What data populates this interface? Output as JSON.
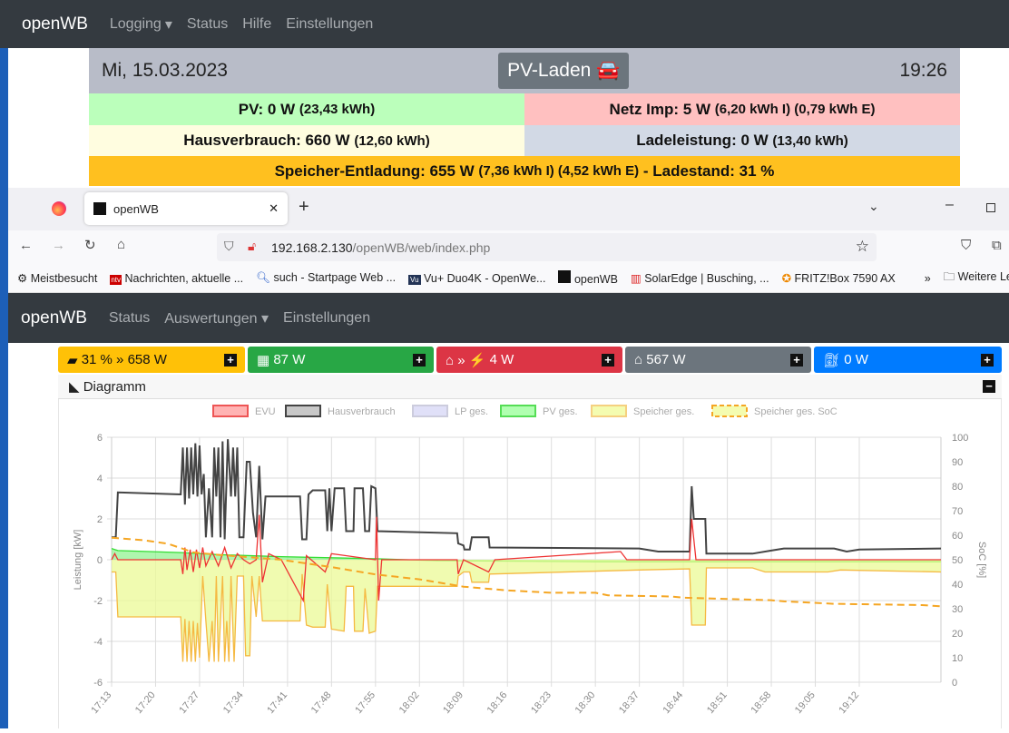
{
  "back_app": {
    "brand": "openWB",
    "nav": [
      "Logging",
      "Status",
      "Hilfe",
      "Einstellungen"
    ],
    "date": "Mi, 15.03.2023",
    "mode_button": "PV-Laden",
    "time": "19:26",
    "pv": {
      "main": "PV: 0 W",
      "sub": "(23,43 kWh)"
    },
    "netz": {
      "main": "Netz Imp: 5 W",
      "sub": "(6,20 kWh I) (0,79 kWh E)"
    },
    "haus": {
      "main": "Hausverbrauch: 660 W",
      "sub": "(12,60 kWh)"
    },
    "lade": {
      "main": "Ladeleistung: 0 W",
      "sub": "(13,40 kWh)"
    },
    "speicher": {
      "main1": "Speicher-Entladung: 655 W",
      "sub": "(7,36 kWh I) (4,52 kWh E)",
      "main2": "- Ladestand: 31 %"
    }
  },
  "browser": {
    "tab_title": "openWB",
    "url_host": "192.168.2.130",
    "url_path": "/openWB/web/index.php",
    "bookmarks": [
      "Meistbesucht",
      "Nachrichten, aktuelle ...",
      "such - Startpage Web ...",
      "Vu+ Duo4K - OpenWe...",
      "openWB",
      "SolarEdge | Busching, ...",
      "FRITZ!Box 7590 AX",
      "Weitere Lese"
    ]
  },
  "app": {
    "brand": "openWB",
    "nav": [
      "Status",
      "Auswertungen",
      "Einstellungen"
    ],
    "tiles": {
      "speicher": "31 % » 658 W",
      "pv": "87 W",
      "evu": "4 W",
      "haus": "567 W",
      "lp": "0 W"
    },
    "diagram_title": "Diagramm"
  },
  "colors": {
    "speicher": "#ffc107",
    "pv": "#28a745",
    "evu": "#dc3545",
    "haus": "#6c757d",
    "lp": "#007bff"
  },
  "chart_data": {
    "type": "line",
    "legend": [
      "EVU",
      "Hausverbrauch",
      "LP ges.",
      "PV ges.",
      "Speicher ges.",
      "Speicher ges. SoC"
    ],
    "ylabel": "Leistung [kW]",
    "y2label": "SoC [%]",
    "ylim": [
      -6,
      6
    ],
    "y2lim": [
      0,
      100
    ],
    "yticks": [
      "6",
      "4",
      "2",
      "0",
      "-2",
      "-4",
      "-6"
    ],
    "y2ticks": [
      "100",
      "90",
      "80",
      "70",
      "60",
      "50",
      "40",
      "30",
      "20",
      "10",
      "0"
    ],
    "xticks": [
      "17:13",
      "17:20",
      "17:27",
      "17:34",
      "17:41",
      "17:48",
      "17:55",
      "18:02",
      "18:09",
      "18:16",
      "18:23",
      "18:30",
      "18:37",
      "18:44",
      "18:51",
      "18:58",
      "19:05",
      "19:12"
    ],
    "xrange": [
      "17:13",
      "19:25"
    ],
    "grid": true,
    "legend_position": "top",
    "series": [
      {
        "name": "Hausverbrauch",
        "color": "#444444",
        "points": [
          [
            "17:13",
            1.1
          ],
          [
            "17:13:40",
            1.1
          ],
          [
            "17:14",
            3.3
          ],
          [
            "17:24",
            3.2
          ],
          [
            "17:24:20",
            5.5
          ],
          [
            "17:24:40",
            2.7
          ],
          [
            "17:25",
            5.5
          ],
          [
            "17:25:20",
            3.0
          ],
          [
            "17:25:40",
            5.5
          ],
          [
            "17:26",
            3.2
          ],
          [
            "17:26:20",
            5.7
          ],
          [
            "17:26:40",
            3.1
          ],
          [
            "17:27",
            5.6
          ],
          [
            "17:27:20",
            3.2
          ],
          [
            "17:27:40",
            4.2
          ],
          [
            "17:28",
            1.1
          ],
          [
            "17:28:30",
            3.5
          ],
          [
            "17:29",
            1.1
          ],
          [
            "17:29:20",
            5.5
          ],
          [
            "17:29:40",
            3.1
          ],
          [
            "17:30",
            5.5
          ],
          [
            "17:30:20",
            1.1
          ],
          [
            "17:30:40",
            5.8
          ],
          [
            "17:31",
            1.0
          ],
          [
            "17:31:30",
            5.9
          ],
          [
            "17:32",
            3.1
          ],
          [
            "17:32:20",
            5.5
          ],
          [
            "17:32:40",
            3.1
          ],
          [
            "17:33",
            5.5
          ],
          [
            "17:33:20",
            1.1
          ],
          [
            "17:34",
            1.1
          ],
          [
            "17:34:30",
            4.8
          ],
          [
            "17:35",
            4.8
          ],
          [
            "17:35:30",
            2.3
          ],
          [
            "17:36",
            1.1
          ],
          [
            "17:36:30",
            4.6
          ],
          [
            "17:37",
            1.0
          ],
          [
            "17:37:30",
            3.1
          ],
          [
            "17:43",
            3.1
          ],
          [
            "17:43:20",
            1.0
          ],
          [
            "17:44",
            1.0
          ],
          [
            "17:44:20",
            3.2
          ],
          [
            "17:45",
            3.4
          ],
          [
            "17:47",
            3.4
          ],
          [
            "17:47:20",
            1.4
          ],
          [
            "17:47:40",
            3.5
          ],
          [
            "17:48",
            1.4
          ],
          [
            "17:48:30",
            3.5
          ],
          [
            "17:50",
            3.5
          ],
          [
            "17:50:20",
            1.4
          ],
          [
            "17:51:30",
            1.4
          ],
          [
            "17:51:40",
            3.5
          ],
          [
            "17:53",
            3.5
          ],
          [
            "17:53:20",
            1.4
          ],
          [
            "17:54",
            1.4
          ],
          [
            "17:54:20",
            3.6
          ],
          [
            "17:55",
            3.5
          ],
          [
            "17:55:20",
            1.4
          ],
          [
            "18:08",
            1.3
          ],
          [
            "18:08:10",
            0.8
          ],
          [
            "18:09",
            0.7
          ],
          [
            "18:09:10",
            0.5
          ],
          [
            "18:10",
            0.5
          ],
          [
            "18:10:20",
            1.1
          ],
          [
            "18:13",
            1.1
          ],
          [
            "18:13:10",
            0.6
          ],
          [
            "18:37",
            0.55
          ],
          [
            "18:40",
            0.4
          ],
          [
            "18:45",
            0.4
          ],
          [
            "18:45:20",
            3.6
          ],
          [
            "18:45:40",
            2.0
          ],
          [
            "18:47:30",
            2.0
          ],
          [
            "18:47:40",
            0.3
          ],
          [
            "18:55",
            0.3
          ],
          [
            "18:58",
            0.45
          ],
          [
            "19:00",
            0.55
          ],
          [
            "19:08",
            0.55
          ],
          [
            "19:10",
            0.4
          ],
          [
            "19:12",
            0.5
          ],
          [
            "19:25",
            0.55
          ]
        ]
      },
      {
        "name": "PV ges.",
        "color": "#33dd33",
        "points": [
          [
            "17:13",
            0.55
          ],
          [
            "17:14",
            0.45
          ],
          [
            "17:24",
            0.35
          ],
          [
            "17:30",
            0.25
          ],
          [
            "17:40",
            0.15
          ],
          [
            "17:55",
            0.05
          ],
          [
            "18:05",
            -0.05
          ],
          [
            "18:30",
            -0.1
          ],
          [
            "18:45",
            -0.1
          ],
          [
            "19:25",
            -0.1
          ]
        ]
      },
      {
        "name": "Speicher ges.",
        "color": "#f5b942",
        "points": [
          [
            "17:13",
            -0.6
          ],
          [
            "17:13:40",
            -0.6
          ],
          [
            "17:14",
            -2.8
          ],
          [
            "17:24",
            -2.8
          ],
          [
            "17:24:20",
            -5.0
          ],
          [
            "17:24:40",
            -2.9
          ],
          [
            "17:25",
            -5.0
          ],
          [
            "17:25:20",
            -3.0
          ],
          [
            "17:25:40",
            -5.0
          ],
          [
            "17:26",
            -3.0
          ],
          [
            "17:26:20",
            -5.0
          ],
          [
            "17:26:40",
            -3.1
          ],
          [
            "17:27",
            -4.8
          ],
          [
            "17:27:30",
            -0.8
          ],
          [
            "17:28",
            -3.0
          ],
          [
            "17:28:30",
            -5.0
          ],
          [
            "17:29",
            -3.0
          ],
          [
            "17:29:20",
            -5.0
          ],
          [
            "17:29:40",
            -0.8
          ],
          [
            "17:30",
            -5.0
          ],
          [
            "17:30:20",
            -3.0
          ],
          [
            "17:30:40",
            -0.8
          ],
          [
            "17:31",
            -5.0
          ],
          [
            "17:31:20",
            -3.0
          ],
          [
            "17:31:40",
            -5.0
          ],
          [
            "17:32",
            -0.8
          ],
          [
            "17:32:30",
            -5.0
          ],
          [
            "17:33",
            -0.8
          ],
          [
            "17:34",
            -0.8
          ],
          [
            "17:34:20",
            -4.7
          ],
          [
            "17:35",
            -4.7
          ],
          [
            "17:35:20",
            -0.8
          ],
          [
            "17:36",
            -2.8
          ],
          [
            "17:36:30",
            -0.8
          ],
          [
            "17:37",
            -3.0
          ],
          [
            "17:43",
            -3.0
          ],
          [
            "17:43:20",
            -0.7
          ],
          [
            "17:44",
            -3.2
          ],
          [
            "17:45",
            -3.3
          ],
          [
            "17:47",
            -3.3
          ],
          [
            "17:47:20",
            -1.2
          ],
          [
            "17:48",
            -3.4
          ],
          [
            "17:50",
            -3.5
          ],
          [
            "17:50:20",
            -1.3
          ],
          [
            "17:51:30",
            -1.3
          ],
          [
            "17:51:40",
            -3.5
          ],
          [
            "17:53",
            -3.5
          ],
          [
            "17:53:20",
            -1.4
          ],
          [
            "17:54",
            -3.6
          ],
          [
            "17:55",
            -3.5
          ],
          [
            "17:55:20",
            -1.3
          ],
          [
            "18:08",
            -1.3
          ],
          [
            "18:08:10",
            -0.8
          ],
          [
            "18:09",
            -0.6
          ],
          [
            "18:10",
            -0.6
          ],
          [
            "18:10:20",
            -1.1
          ],
          [
            "18:13",
            -1.1
          ],
          [
            "18:13:10",
            -0.7
          ],
          [
            "18:37",
            -0.5
          ],
          [
            "18:45",
            -0.45
          ],
          [
            "18:45:20",
            -3.2
          ],
          [
            "18:47:30",
            -3.2
          ],
          [
            "18:47:40",
            -0.4
          ],
          [
            "18:55",
            -0.4
          ],
          [
            "18:57",
            -0.6
          ],
          [
            "19:07",
            -0.6
          ],
          [
            "19:09",
            -0.5
          ],
          [
            "19:25",
            -0.6
          ]
        ]
      },
      {
        "name": "EVU",
        "color": "#ee3333",
        "points": [
          [
            "17:13",
            0
          ],
          [
            "17:13:30",
            0.3
          ],
          [
            "17:14",
            0
          ],
          [
            "17:24",
            0
          ],
          [
            "17:24:20",
            -0.7
          ],
          [
            "17:24:40",
            0.6
          ],
          [
            "17:25",
            -0.5
          ],
          [
            "17:25:30",
            0.5
          ],
          [
            "17:26",
            -0.6
          ],
          [
            "17:26:30",
            0.5
          ],
          [
            "17:27",
            -0.4
          ],
          [
            "17:27:30",
            0.6
          ],
          [
            "17:28",
            -0.3
          ],
          [
            "17:29",
            0.4
          ],
          [
            "17:30",
            -0.3
          ],
          [
            "17:31",
            0.6
          ],
          [
            "17:32",
            -0.4
          ],
          [
            "17:33",
            0.3
          ],
          [
            "17:34",
            0
          ],
          [
            "17:35",
            -0.2
          ],
          [
            "17:36",
            0
          ],
          [
            "17:36:30",
            2.2
          ],
          [
            "17:37",
            -1.1
          ],
          [
            "17:38",
            0.3
          ],
          [
            "17:40",
            0
          ],
          [
            "17:43:30",
            -2.0
          ],
          [
            "17:44",
            0.2
          ],
          [
            "17:47",
            -0.6
          ],
          [
            "17:48",
            0.3
          ],
          [
            "17:55",
            0
          ],
          [
            "17:55:10",
            2.1
          ],
          [
            "17:55:30",
            -2.0
          ],
          [
            "17:56",
            0
          ],
          [
            "18:08",
            0
          ],
          [
            "18:08:10",
            -0.7
          ],
          [
            "18:09",
            0
          ],
          [
            "18:13",
            -0.6
          ],
          [
            "18:14",
            0
          ],
          [
            "18:34",
            0.4
          ],
          [
            "18:35",
            0
          ],
          [
            "18:45",
            0
          ],
          [
            "18:45:20",
            2.0
          ],
          [
            "18:46",
            0
          ],
          [
            "19:25",
            0
          ]
        ]
      },
      {
        "name": "Speicher ges. SoC",
        "color": "#f5a623",
        "dashed": true,
        "axis": "y2",
        "points": [
          [
            "17:13",
            59
          ],
          [
            "17:18",
            58
          ],
          [
            "17:22",
            56.5
          ],
          [
            "17:26",
            53
          ],
          [
            "17:30",
            52
          ],
          [
            "17:40",
            50
          ],
          [
            "17:48",
            47
          ],
          [
            "17:55",
            44
          ],
          [
            "18:02",
            42
          ],
          [
            "18:09",
            39
          ],
          [
            "18:16",
            37.5
          ],
          [
            "18:23",
            36.5
          ],
          [
            "18:30",
            36.5
          ],
          [
            "18:32",
            35.5
          ],
          [
            "18:42",
            35
          ],
          [
            "18:44",
            34.5
          ],
          [
            "18:51",
            34
          ],
          [
            "18:58",
            33.5
          ],
          [
            "19:00",
            33
          ],
          [
            "19:08",
            32
          ],
          [
            "19:22",
            31.5
          ],
          [
            "19:25",
            31
          ]
        ]
      }
    ]
  }
}
